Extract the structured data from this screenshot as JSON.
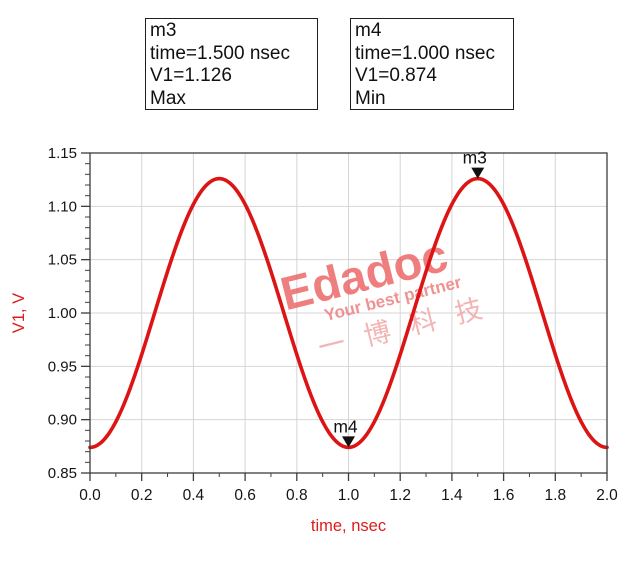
{
  "marker_boxes": [
    {
      "id": "m3",
      "lines": [
        "m3",
        "time=1.500 nsec",
        "V1=1.126",
        "Max"
      ]
    },
    {
      "id": "m4",
      "lines": [
        "m4",
        "time=1.000 nsec",
        "V1=0.874",
        "Min"
      ]
    }
  ],
  "chart_data": {
    "type": "line",
    "title": "",
    "xlabel": "time, nsec",
    "ylabel": "V1, V",
    "xlim": [
      0.0,
      2.0
    ],
    "ylim": [
      0.85,
      1.15
    ],
    "x_major_step": 0.2,
    "x_minor_step": 0.1,
    "y_major_step": 0.05,
    "y_minor_step": 0.01,
    "x_tick_labels": [
      "0.0",
      "0.2",
      "0.4",
      "0.6",
      "0.8",
      "1.0",
      "1.2",
      "1.4",
      "1.6",
      "1.8",
      "2.0"
    ],
    "y_tick_labels": [
      "0.85",
      "0.90",
      "0.95",
      "1.00",
      "1.05",
      "1.10",
      "1.15"
    ],
    "grid": true,
    "series": [
      {
        "name": "V1",
        "color": "#dc1414",
        "waveform": {
          "shape": "sine",
          "offset": 1.0,
          "amplitude": 0.126,
          "period": 1.0,
          "phase": "minimum at t=0"
        },
        "points_sampled": [
          [
            0.0,
            0.874
          ],
          [
            0.25,
            1.0
          ],
          [
            0.5,
            1.126
          ],
          [
            0.75,
            1.0
          ],
          [
            1.0,
            0.874
          ],
          [
            1.25,
            1.0
          ],
          [
            1.5,
            1.126
          ],
          [
            1.75,
            1.0
          ],
          [
            2.0,
            0.874
          ]
        ]
      }
    ],
    "markers": [
      {
        "label": "m3",
        "x": 1.5,
        "y": 1.126,
        "note": "Max"
      },
      {
        "label": "m4",
        "x": 1.0,
        "y": 0.874,
        "note": "Min"
      }
    ],
    "axis_color": "#3d3d3d",
    "grid_color": "#d6d6d6",
    "label_color": "#e01b1b",
    "tick_label_color": "#141414",
    "marker_color": "#111111"
  },
  "watermark": {
    "brand": "Edadoc",
    "brand_color": "#ec6060",
    "tagline": "Your best partner",
    "tagline_color": "#ee7878",
    "chinese": "一博科技",
    "chinese_color": "#f2a2a2"
  }
}
